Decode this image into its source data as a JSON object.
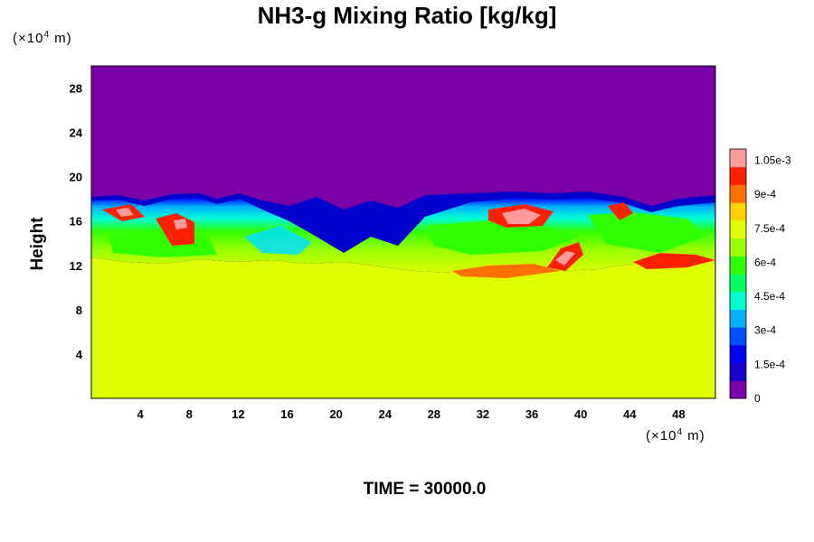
{
  "title": "NH3-g Mixing Ratio [kg/kg]",
  "ylabel": "Height",
  "y_unit": {
    "prefix": "(×10",
    "exp": "4",
    "suffix": " m)"
  },
  "x_unit": {
    "prefix": "(×10",
    "exp": "4",
    "suffix": " m)"
  },
  "footer": "TIME = 30000.0",
  "chart_data": {
    "type": "heatmap",
    "title": "NH3-g Mixing Ratio [kg/kg]",
    "ylabel": "Height",
    "xlim": [
      0,
      51
    ],
    "ylim": [
      0,
      30
    ],
    "x_ticks": [
      4,
      8,
      12,
      16,
      20,
      24,
      28,
      32,
      36,
      40,
      44,
      48
    ],
    "y_ticks": [
      4,
      8,
      12,
      16,
      20,
      24,
      28
    ],
    "colorbar": {
      "range": [
        0,
        0.0011
      ],
      "tick_values": [
        0,
        0.00015,
        0.0003,
        0.00045,
        0.0006,
        0.00075,
        0.0009,
        0.00105
      ],
      "tick_labels": [
        "0",
        "1.5e-4",
        "3e-4",
        "4.5e-4",
        "6e-4",
        "7.5e-4",
        "9e-4",
        "1.05e-3"
      ],
      "colors": [
        "#7a00a8",
        "#1a00c8",
        "#0000ff",
        "#0050ff",
        "#00b0ff",
        "#00ffd0",
        "#00ff60",
        "#30ff00",
        "#9bff00",
        "#ddff00",
        "#ffd000",
        "#ff7000",
        "#ff2000",
        "#ff9a9a"
      ]
    },
    "layers": [
      {
        "y_range": [
          0,
          11
        ],
        "value": 0.00076
      },
      {
        "y_range": [
          11,
          18
        ],
        "value_range": [
          0.00015,
          0.0011
        ]
      },
      {
        "y_range": [
          18,
          30
        ],
        "value": 0
      }
    ]
  }
}
